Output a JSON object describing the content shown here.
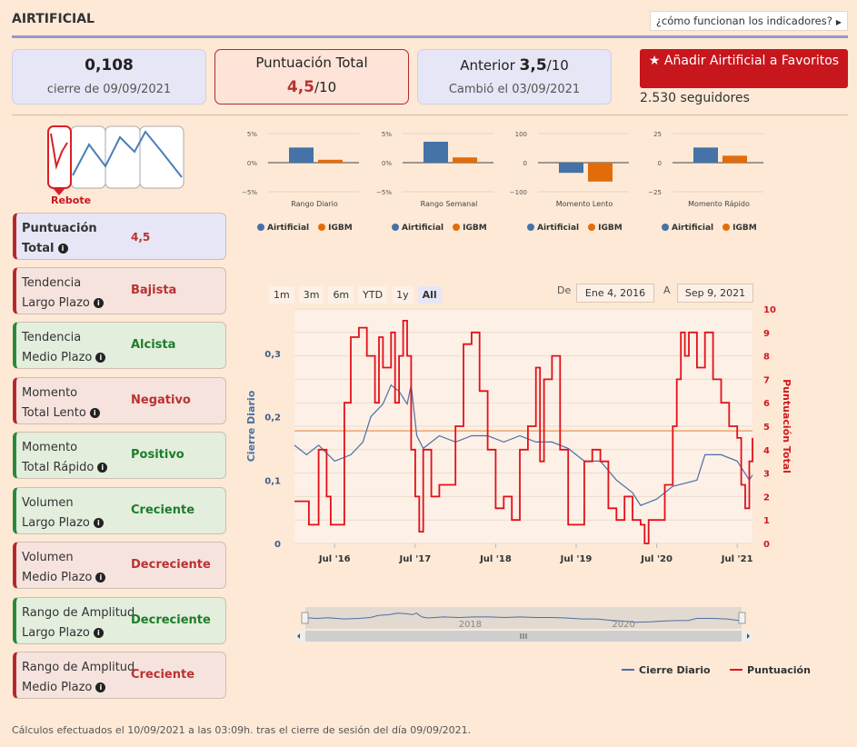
{
  "header": {
    "title": "AIRTIFICIAL",
    "how_link": "¿cómo funcionan los indicadores?"
  },
  "cards": {
    "price": {
      "value": "0,108",
      "label": "cierre de 09/09/2021"
    },
    "score": {
      "label": "Puntuación Total",
      "value": "4,5",
      "of": "/10"
    },
    "previous": {
      "label": "Anterior",
      "value": "3,5",
      "of": "/10",
      "changed": "Cambió el 03/09/2021"
    }
  },
  "favorite": {
    "label": "Añadir Airtificial a Favoritos",
    "followers": "2.530 seguidores"
  },
  "signal": {
    "label": "Rebote"
  },
  "indicators": [
    {
      "name_line1": "Puntuación",
      "name_line2": "Total",
      "value": "4,5",
      "style": "blue",
      "bold": true
    },
    {
      "name_line1": "Tendencia",
      "name_line2": "Largo Plazo",
      "value": "Bajista",
      "style": "red"
    },
    {
      "name_line1": "Tendencia",
      "name_line2": "Medio Plazo",
      "value": "Alcista",
      "style": "green"
    },
    {
      "name_line1": "Momento",
      "name_line2": "Total Lento",
      "value": "Negativo",
      "style": "red"
    },
    {
      "name_line1": "Momento",
      "name_line2": "Total Rápido",
      "value": "Positivo",
      "style": "green"
    },
    {
      "name_line1": "Volumen",
      "name_line2": "Largo Plazo",
      "value": "Creciente",
      "style": "green"
    },
    {
      "name_line1": "Volumen",
      "name_line2": "Medio Plazo",
      "value": "Decreciente",
      "style": "red"
    },
    {
      "name_line1": "Rango de Amplitud",
      "name_line2": "Largo Plazo",
      "value": "Decreciente",
      "style": "green"
    },
    {
      "name_line1": "Rango de Amplitud",
      "name_line2": "Medio Plazo",
      "value": "Creciente",
      "style": "red"
    }
  ],
  "range_selector": {
    "buttons": [
      "1m",
      "3m",
      "6m",
      "YTD",
      "1y",
      "All"
    ],
    "active": "All",
    "from_label": "De",
    "from": "Ene 4, 2016",
    "to_label": "A",
    "to": "Sep 9, 2021"
  },
  "chart_data": [
    {
      "type": "bar",
      "xlabel": "Rango Diario",
      "ylim": [
        -5,
        5
      ],
      "yticks": [
        "5%",
        "0%",
        "−5%"
      ],
      "series": [
        {
          "name": "Airtificial",
          "values": [
            2.6
          ]
        },
        {
          "name": "IGBM",
          "values": [
            0.5
          ]
        }
      ],
      "colors": [
        "#4572a7",
        "#e36c0a"
      ]
    },
    {
      "type": "bar",
      "xlabel": "Rango Semanal",
      "ylim": [
        -5,
        5
      ],
      "yticks": [
        "5%",
        "0%",
        "−5%"
      ],
      "series": [
        {
          "name": "Airtificial",
          "values": [
            3.6
          ]
        },
        {
          "name": "IGBM",
          "values": [
            0.9
          ]
        }
      ],
      "colors": [
        "#4572a7",
        "#e36c0a"
      ]
    },
    {
      "type": "bar",
      "xlabel": "Momento Lento",
      "ylim": [
        -100,
        100
      ],
      "yticks": [
        "100",
        "0",
        "−100"
      ],
      "series": [
        {
          "name": "Airtificial",
          "values": [
            -35
          ]
        },
        {
          "name": "IGBM",
          "values": [
            -65
          ]
        }
      ],
      "colors": [
        "#4572a7",
        "#e36c0a"
      ]
    },
    {
      "type": "bar",
      "xlabel": "Momento Rápido",
      "ylim": [
        -25,
        25
      ],
      "yticks": [
        "25",
        "0",
        "−25"
      ],
      "series": [
        {
          "name": "Airtificial",
          "values": [
            13
          ]
        },
        {
          "name": "IGBM",
          "values": [
            6
          ]
        }
      ],
      "colors": [
        "#4572a7",
        "#e36c0a"
      ]
    },
    {
      "type": "line",
      "x_ticks": [
        "Jul '16",
        "Jul '17",
        "Jul '18",
        "Jul '19",
        "Jul '20",
        "Jul '21"
      ],
      "x_tick_dates": [
        2016.5,
        2017.5,
        2018.5,
        2019.5,
        2020.5,
        2021.5
      ],
      "xlim": [
        2016.0,
        2021.69
      ],
      "left_axis": {
        "label": "Cierre Diario",
        "ticks": [
          "0",
          "0,1",
          "0,2",
          "0,3"
        ],
        "ylim": [
          0,
          0.37
        ]
      },
      "right_axis": {
        "label": "Puntuación Total",
        "ticks": [
          "0",
          "1",
          "2",
          "3",
          "4",
          "5",
          "6",
          "7",
          "8",
          "9",
          "10"
        ],
        "ylim": [
          0,
          10
        ]
      },
      "reference_line": 4.8,
      "series": [
        {
          "name": "Cierre Diario",
          "axis": "left",
          "color": "#4a6fa5",
          "points": [
            [
              2016.0,
              0.155
            ],
            [
              2016.15,
              0.14
            ],
            [
              2016.3,
              0.155
            ],
            [
              2016.5,
              0.13
            ],
            [
              2016.7,
              0.14
            ],
            [
              2016.85,
              0.16
            ],
            [
              2016.95,
              0.2
            ],
            [
              2017.1,
              0.22
            ],
            [
              2017.2,
              0.25
            ],
            [
              2017.3,
              0.24
            ],
            [
              2017.4,
              0.22
            ],
            [
              2017.45,
              0.25
            ],
            [
              2017.52,
              0.17
            ],
            [
              2017.6,
              0.15
            ],
            [
              2017.8,
              0.17
            ],
            [
              2018.0,
              0.16
            ],
            [
              2018.2,
              0.17
            ],
            [
              2018.4,
              0.17
            ],
            [
              2018.6,
              0.16
            ],
            [
              2018.8,
              0.17
            ],
            [
              2019.0,
              0.16
            ],
            [
              2019.2,
              0.16
            ],
            [
              2019.4,
              0.15
            ],
            [
              2019.6,
              0.13
            ],
            [
              2019.8,
              0.13
            ],
            [
              2020.0,
              0.1
            ],
            [
              2020.2,
              0.08
            ],
            [
              2020.3,
              0.06
            ],
            [
              2020.5,
              0.07
            ],
            [
              2020.7,
              0.09
            ],
            [
              2020.85,
              0.095
            ],
            [
              2021.0,
              0.1
            ],
            [
              2021.1,
              0.14
            ],
            [
              2021.3,
              0.14
            ],
            [
              2021.5,
              0.13
            ],
            [
              2021.65,
              0.1
            ],
            [
              2021.69,
              0.108
            ]
          ]
        },
        {
          "name": "Puntuación",
          "axis": "right",
          "color": "#e3101a",
          "points": [
            [
              2016.0,
              1.8
            ],
            [
              2016.15,
              1.8
            ],
            [
              2016.18,
              0.8
            ],
            [
              2016.3,
              4.0
            ],
            [
              2016.4,
              2.0
            ],
            [
              2016.45,
              0.8
            ],
            [
              2016.55,
              0.8
            ],
            [
              2016.62,
              6.0
            ],
            [
              2016.7,
              8.8
            ],
            [
              2016.8,
              9.2
            ],
            [
              2016.9,
              8.0
            ],
            [
              2017.0,
              6.0
            ],
            [
              2017.05,
              8.8
            ],
            [
              2017.1,
              7.5
            ],
            [
              2017.2,
              9.0
            ],
            [
              2017.25,
              6.0
            ],
            [
              2017.3,
              8.0
            ],
            [
              2017.35,
              9.5
            ],
            [
              2017.4,
              8.0
            ],
            [
              2017.45,
              4.0
            ],
            [
              2017.5,
              2.0
            ],
            [
              2017.55,
              0.5
            ],
            [
              2017.6,
              4.0
            ],
            [
              2017.7,
              2.0
            ],
            [
              2017.8,
              2.5
            ],
            [
              2017.9,
              2.5
            ],
            [
              2018.0,
              5.0
            ],
            [
              2018.1,
              8.5
            ],
            [
              2018.2,
              9.0
            ],
            [
              2018.3,
              6.5
            ],
            [
              2018.4,
              4.0
            ],
            [
              2018.5,
              1.5
            ],
            [
              2018.6,
              2.0
            ],
            [
              2018.7,
              1.0
            ],
            [
              2018.8,
              4.0
            ],
            [
              2018.9,
              5.0
            ],
            [
              2019.0,
              7.5
            ],
            [
              2019.05,
              3.5
            ],
            [
              2019.1,
              7.0
            ],
            [
              2019.2,
              8.0
            ],
            [
              2019.3,
              4.0
            ],
            [
              2019.4,
              0.8
            ],
            [
              2019.5,
              0.8
            ],
            [
              2019.6,
              3.5
            ],
            [
              2019.7,
              4.0
            ],
            [
              2019.8,
              3.5
            ],
            [
              2019.9,
              1.5
            ],
            [
              2020.0,
              1.0
            ],
            [
              2020.1,
              2.0
            ],
            [
              2020.2,
              1.0
            ],
            [
              2020.3,
              0.8
            ],
            [
              2020.35,
              0.0
            ],
            [
              2020.4,
              1.0
            ],
            [
              2020.5,
              1.0
            ],
            [
              2020.6,
              2.5
            ],
            [
              2020.7,
              5.0
            ],
            [
              2020.75,
              7.0
            ],
            [
              2020.8,
              9.0
            ],
            [
              2020.85,
              8.0
            ],
            [
              2020.9,
              9.0
            ],
            [
              2021.0,
              7.5
            ],
            [
              2021.1,
              9.0
            ],
            [
              2021.2,
              7.0
            ],
            [
              2021.3,
              6.0
            ],
            [
              2021.4,
              5.0
            ],
            [
              2021.5,
              4.5
            ],
            [
              2021.55,
              2.5
            ],
            [
              2021.6,
              1.5
            ],
            [
              2021.65,
              3.5
            ],
            [
              2021.69,
              4.5
            ]
          ]
        }
      ],
      "navigator": {
        "labels": [
          "2018",
          "2020"
        ]
      },
      "legend": [
        "Cierre Diario",
        "Puntuación"
      ]
    }
  ],
  "footnote": "Cálculos efectuados el 10/09/2021 a las 03:09h. tras el cierre de sesión del día 09/09/2021."
}
